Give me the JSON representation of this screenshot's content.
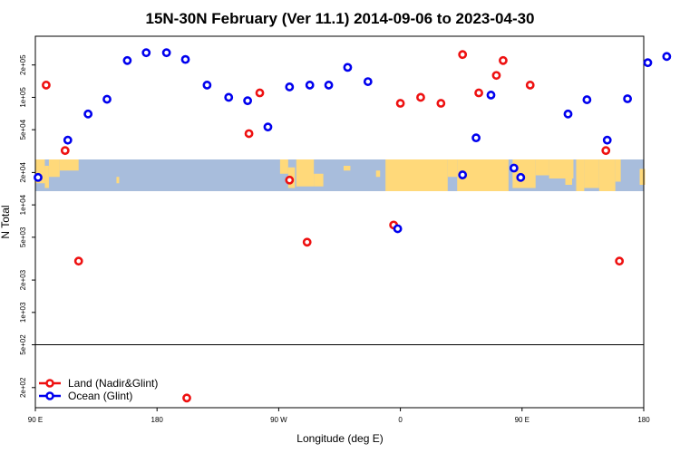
{
  "chart_data": {
    "type": "scatter",
    "title": "15N-30N February (Ver 11.1)   2014-09-06 to 2023-04-30",
    "xlabel": "Longitude (deg E)",
    "ylabel": "N Total",
    "x_ticks": [
      90,
      180,
      270,
      360,
      450,
      540
    ],
    "x_tick_labels": [
      "90 E",
      "180",
      "90 W",
      "0",
      "90 E",
      "180"
    ],
    "xlim": [
      90,
      540
    ],
    "y_scale": "log",
    "y_ticks": [
      200,
      500,
      1000,
      2000,
      5000,
      10000,
      20000,
      50000,
      100000,
      200000
    ],
    "y_tick_labels": [
      "2e+02",
      "5e+02",
      "1e+03",
      "2e+03",
      "5e+03",
      "1e+04",
      "2e+04",
      "5e+04",
      "1e+05",
      "2e+05"
    ],
    "ylim": [
      130,
      370000
    ],
    "reference_line_y": 500,
    "background_map": "world land/ocean map strip for latitudes 15N-30N",
    "map_colors": {
      "land": "#ffd97a",
      "ocean": "#a8bddc"
    },
    "legend_position": "bottom-left",
    "series": [
      {
        "name": "Land (Nadir&Glint)",
        "color": "#ee1111",
        "points": [
          [
            98,
            130000
          ],
          [
            112,
            32000
          ],
          [
            122,
            3000
          ],
          [
            202,
            160
          ],
          [
            248,
            46000
          ],
          [
            256,
            110000
          ],
          [
            278,
            17000
          ],
          [
            291,
            4500
          ],
          [
            355,
            6500
          ],
          [
            360,
            88000
          ],
          [
            375,
            100000
          ],
          [
            390,
            88000
          ],
          [
            406,
            250000
          ],
          [
            418,
            110000
          ],
          [
            431,
            160000
          ],
          [
            436,
            220000
          ],
          [
            456,
            130000
          ],
          [
            512,
            32000
          ],
          [
            522,
            3000
          ]
        ]
      },
      {
        "name": "Ocean (Glint)",
        "color": "#0000ee",
        "points": [
          [
            92,
            18000
          ],
          [
            114,
            40000
          ],
          [
            129,
            70000
          ],
          [
            143,
            96000
          ],
          [
            158,
            220000
          ],
          [
            172,
            260000
          ],
          [
            187,
            260000
          ],
          [
            201,
            225000
          ],
          [
            217,
            130000
          ],
          [
            233,
            100000
          ],
          [
            247,
            93000
          ],
          [
            262,
            53000
          ],
          [
            278,
            125000
          ],
          [
            293,
            130000
          ],
          [
            307,
            130000
          ],
          [
            321,
            190000
          ],
          [
            336,
            140000
          ],
          [
            358,
            6000
          ],
          [
            406,
            19000
          ],
          [
            416,
            42000
          ],
          [
            427,
            105000
          ],
          [
            444,
            22000
          ],
          [
            449,
            18000
          ],
          [
            484,
            70000
          ],
          [
            498,
            95000
          ],
          [
            513,
            40000
          ],
          [
            528,
            97000
          ],
          [
            543,
            210000
          ],
          [
            557,
            240000
          ]
        ]
      }
    ]
  }
}
